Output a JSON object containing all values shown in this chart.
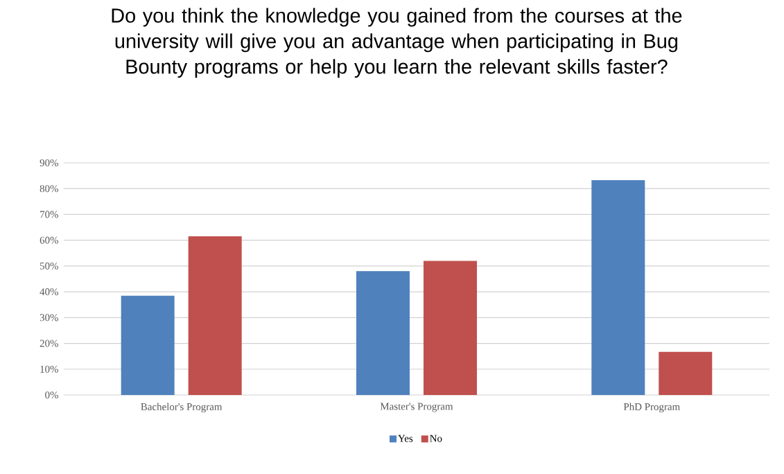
{
  "chart_data": {
    "type": "bar",
    "title": "Do you think the knowledge you gained from the courses at the university will give you an advantage when participating in Bug Bounty programs or help you learn the relevant skills faster?",
    "categories": [
      "Bachelor's Program",
      "Master's Program",
      "PhD Program"
    ],
    "series": [
      {
        "name": "Yes",
        "color": "#4f81bd",
        "values": [
          38.5,
          48,
          83.3
        ]
      },
      {
        "name": "No",
        "color": "#c0504d",
        "values": [
          61.5,
          52,
          16.7
        ]
      }
    ],
    "ylim": [
      0,
      90
    ],
    "yticks": [
      {
        "value": 0,
        "label": "0%"
      },
      {
        "value": 10,
        "label": "10%"
      },
      {
        "value": 20,
        "label": "20%"
      },
      {
        "value": 30,
        "label": "30%"
      },
      {
        "value": 40,
        "label": "40%"
      },
      {
        "value": 50,
        "label": "50%"
      },
      {
        "value": 60,
        "label": "60%"
      },
      {
        "value": 70,
        "label": "70%"
      },
      {
        "value": 80,
        "label": "80%"
      },
      {
        "value": 90,
        "label": "90%"
      }
    ],
    "grid": "y",
    "legend": "bottom"
  }
}
